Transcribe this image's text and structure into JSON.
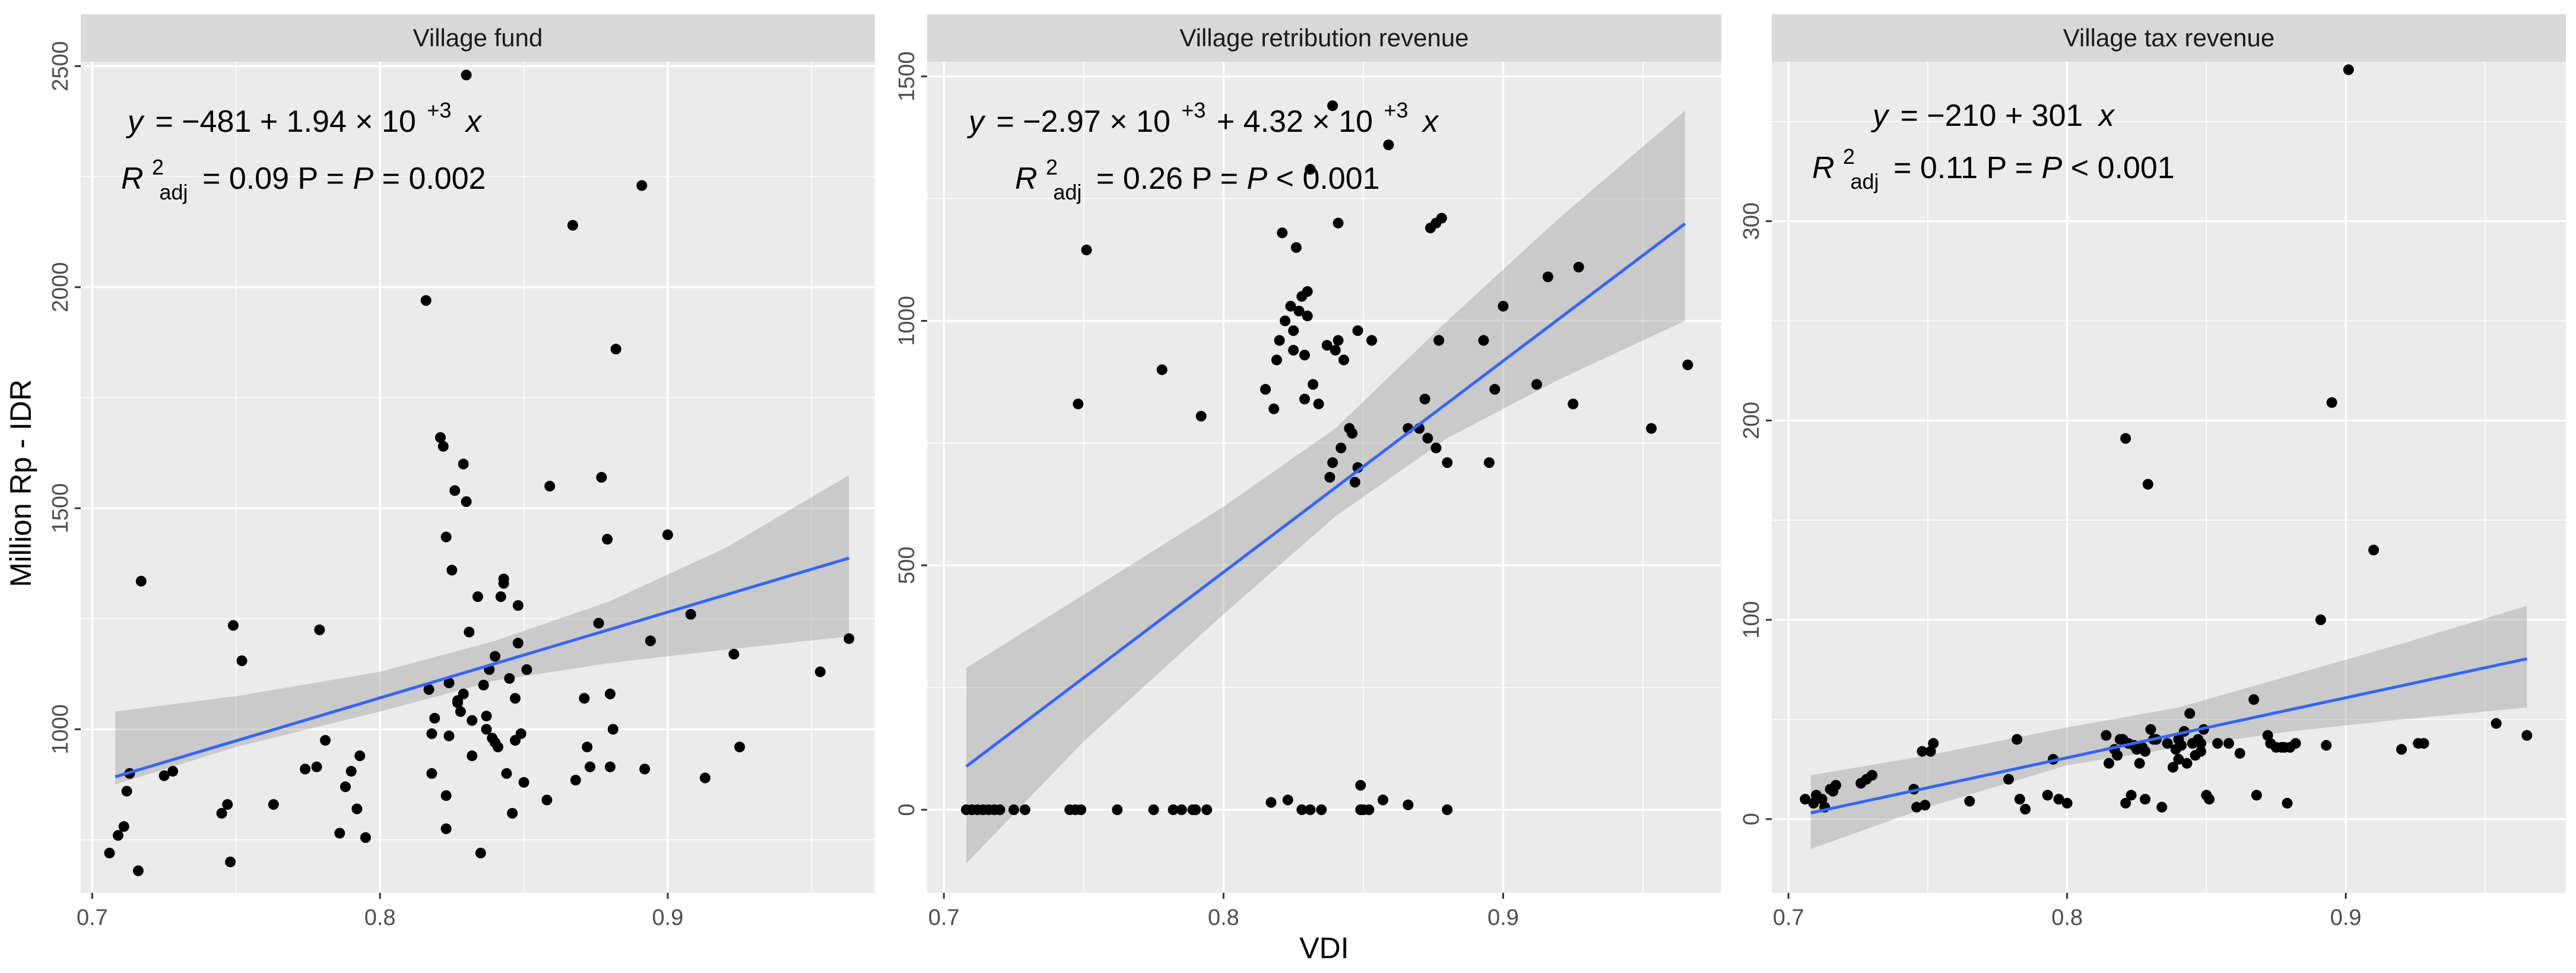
{
  "figure": {
    "x_axis_title": "VDI",
    "y_axis_title": "Million Rp - IDR"
  },
  "colors": {
    "panel_bg": "#ebebeb",
    "strip_bg": "#d9d9d9",
    "grid": "#ffffff",
    "point": "#000000",
    "fit_line": "#3366ff",
    "ci_band": "#999999"
  },
  "panels": [
    {
      "strip_title": "Village fund",
      "eq_y": "y",
      "eq_rhs": "= −481 + 1.94 × 10",
      "eq_exp": "+3",
      "eq_x": "x",
      "r2_label": "R",
      "r2_sup": "2",
      "r2_sub": "adj",
      "r2_rest": "= 0.09 P = ",
      "p_italic": "P",
      "p_rest": " = 0.002",
      "x_ticks": [
        "0.7",
        "0.8",
        "0.9"
      ],
      "y_ticks": [
        "1000",
        "1500",
        "2000",
        "2500"
      ]
    },
    {
      "strip_title": "Village retribution revenue",
      "eq_y": "y",
      "eq_rhs": "= −2.97 × 10",
      "eq_exp": "+3",
      "eq_mid": " + 4.32 × 10",
      "eq_exp2": "+3",
      "eq_x": "x",
      "r2_label": "R",
      "r2_sup": "2",
      "r2_sub": "adj",
      "r2_rest": "= 0.26 P = ",
      "p_italic": "P",
      "p_rest": " < 0.001",
      "x_ticks": [
        "0.7",
        "0.8",
        "0.9"
      ],
      "y_ticks": [
        "0",
        "500",
        "1000",
        "1500"
      ]
    },
    {
      "strip_title": "Village tax revenue",
      "eq_y": "y",
      "eq_rhs": "= −210 + 301",
      "eq_x": "x",
      "r2_label": "R",
      "r2_sup": "2",
      "r2_sub": "adj",
      "r2_rest": "= 0.11 P = ",
      "p_italic": "P",
      "p_rest": " < 0.001",
      "x_ticks": [
        "0.7",
        "0.8",
        "0.9"
      ],
      "y_ticks": [
        "0",
        "100",
        "200",
        "300"
      ]
    }
  ],
  "chart_data": [
    {
      "type": "scatter",
      "title": "Village fund",
      "xlabel": "VDI",
      "ylabel": "Million Rp - IDR",
      "xlim": [
        0.696,
        0.972
      ],
      "ylim": [
        630,
        2510
      ],
      "x_ticks": [
        0.7,
        0.8,
        0.9
      ],
      "y_ticks": [
        1000,
        1500,
        2000,
        2500
      ],
      "fit": {
        "intercept": -481,
        "slope": 1940,
        "x_range": [
          0.708,
          0.963
        ]
      },
      "ci": [
        [
          0.708,
          875,
          1040
        ],
        [
          0.75,
          960,
          1075
        ],
        [
          0.8,
          1040,
          1130
        ],
        [
          0.84,
          1110,
          1200
        ],
        [
          0.88,
          1150,
          1290
        ],
        [
          0.92,
          1180,
          1410
        ],
        [
          0.963,
          1210,
          1575
        ]
      ],
      "points": [
        [
          0.706,
          720
        ],
        [
          0.709,
          760
        ],
        [
          0.711,
          780
        ],
        [
          0.712,
          860
        ],
        [
          0.713,
          900
        ],
        [
          0.716,
          680
        ],
        [
          0.717,
          1335
        ],
        [
          0.725,
          895
        ],
        [
          0.728,
          905
        ],
        [
          0.745,
          810
        ],
        [
          0.747,
          830
        ],
        [
          0.748,
          700
        ],
        [
          0.749,
          1235
        ],
        [
          0.752,
          1155
        ],
        [
          0.763,
          830
        ],
        [
          0.774,
          910
        ],
        [
          0.778,
          915
        ],
        [
          0.779,
          1225
        ],
        [
          0.781,
          975
        ],
        [
          0.786,
          765
        ],
        [
          0.788,
          870
        ],
        [
          0.79,
          905
        ],
        [
          0.792,
          820
        ],
        [
          0.793,
          940
        ],
        [
          0.795,
          755
        ],
        [
          0.816,
          1970
        ],
        [
          0.817,
          1090
        ],
        [
          0.818,
          900
        ],
        [
          0.818,
          990
        ],
        [
          0.819,
          1025
        ],
        [
          0.821,
          1660
        ],
        [
          0.822,
          1640
        ],
        [
          0.823,
          850
        ],
        [
          0.823,
          1435
        ],
        [
          0.823,
          775
        ],
        [
          0.824,
          985
        ],
        [
          0.824,
          1105
        ],
        [
          0.825,
          1360
        ],
        [
          0.826,
          1540
        ],
        [
          0.827,
          1065
        ],
        [
          0.827,
          1060
        ],
        [
          0.828,
          1040
        ],
        [
          0.829,
          1080
        ],
        [
          0.829,
          1600
        ],
        [
          0.83,
          2480
        ],
        [
          0.83,
          1515
        ],
        [
          0.831,
          1220
        ],
        [
          0.832,
          940
        ],
        [
          0.832,
          1020
        ],
        [
          0.834,
          1300
        ],
        [
          0.835,
          720
        ],
        [
          0.836,
          1100
        ],
        [
          0.837,
          1030
        ],
        [
          0.837,
          1000
        ],
        [
          0.838,
          1135
        ],
        [
          0.839,
          980
        ],
        [
          0.84,
          1165
        ],
        [
          0.84,
          970
        ],
        [
          0.841,
          960
        ],
        [
          0.842,
          1300
        ],
        [
          0.843,
          1340
        ],
        [
          0.843,
          1330
        ],
        [
          0.844,
          900
        ],
        [
          0.845,
          1115
        ],
        [
          0.846,
          810
        ],
        [
          0.847,
          1070
        ],
        [
          0.847,
          975
        ],
        [
          0.848,
          1280
        ],
        [
          0.848,
          1195
        ],
        [
          0.849,
          990
        ],
        [
          0.85,
          880
        ],
        [
          0.851,
          1135
        ],
        [
          0.858,
          840
        ],
        [
          0.859,
          1550
        ],
        [
          0.867,
          2140
        ],
        [
          0.868,
          885
        ],
        [
          0.871,
          1070
        ],
        [
          0.872,
          960
        ],
        [
          0.873,
          915
        ],
        [
          0.876,
          1240
        ],
        [
          0.877,
          1570
        ],
        [
          0.879,
          1430
        ],
        [
          0.88,
          915
        ],
        [
          0.88,
          1080
        ],
        [
          0.881,
          1000
        ],
        [
          0.882,
          1860
        ],
        [
          0.891,
          2230
        ],
        [
          0.892,
          910
        ],
        [
          0.894,
          1200
        ],
        [
          0.9,
          1440
        ],
        [
          0.908,
          1260
        ],
        [
          0.913,
          890
        ],
        [
          0.923,
          1170
        ],
        [
          0.925,
          960
        ],
        [
          0.953,
          1130
        ],
        [
          0.963,
          1205
        ]
      ]
    },
    {
      "type": "scatter",
      "title": "Village retribution revenue",
      "xlabel": "VDI",
      "ylabel": "Million Rp - IDR",
      "xlim": [
        0.694,
        0.978
      ],
      "ylim": [
        -170,
        1530
      ],
      "x_ticks": [
        0.7,
        0.8,
        0.9
      ],
      "y_ticks": [
        0,
        500,
        1000,
        1500
      ],
      "fit": {
        "intercept": -2970,
        "slope": 4320,
        "x_range": [
          0.708,
          0.965
        ]
      },
      "ci": [
        [
          0.708,
          -110,
          290
        ],
        [
          0.75,
          140,
          440
        ],
        [
          0.8,
          400,
          620
        ],
        [
          0.84,
          600,
          780
        ],
        [
          0.88,
          760,
          1000
        ],
        [
          0.92,
          880,
          1210
        ],
        [
          0.965,
          1000,
          1430
        ]
      ],
      "points": [
        [
          0.708,
          0
        ],
        [
          0.71,
          0
        ],
        [
          0.712,
          0
        ],
        [
          0.714,
          0
        ],
        [
          0.716,
          0
        ],
        [
          0.718,
          0
        ],
        [
          0.72,
          0
        ],
        [
          0.725,
          0
        ],
        [
          0.729,
          0
        ],
        [
          0.745,
          0
        ],
        [
          0.747,
          0
        ],
        [
          0.748,
          830
        ],
        [
          0.749,
          0
        ],
        [
          0.751,
          1145
        ],
        [
          0.762,
          0
        ],
        [
          0.775,
          0
        ],
        [
          0.778,
          900
        ],
        [
          0.782,
          0
        ],
        [
          0.785,
          0
        ],
        [
          0.789,
          0
        ],
        [
          0.79,
          0
        ],
        [
          0.792,
          805
        ],
        [
          0.794,
          0
        ],
        [
          0.815,
          860
        ],
        [
          0.817,
          15
        ],
        [
          0.818,
          820
        ],
        [
          0.819,
          920
        ],
        [
          0.82,
          960
        ],
        [
          0.821,
          1180
        ],
        [
          0.822,
          1000
        ],
        [
          0.823,
          20
        ],
        [
          0.824,
          1030
        ],
        [
          0.825,
          940
        ],
        [
          0.825,
          980
        ],
        [
          0.826,
          1150
        ],
        [
          0.827,
          1020
        ],
        [
          0.828,
          0
        ],
        [
          0.828,
          1050
        ],
        [
          0.829,
          840
        ],
        [
          0.829,
          930
        ],
        [
          0.83,
          1060
        ],
        [
          0.83,
          1010
        ],
        [
          0.831,
          0
        ],
        [
          0.831,
          1310
        ],
        [
          0.832,
          870
        ],
        [
          0.834,
          830
        ],
        [
          0.835,
          0
        ],
        [
          0.837,
          950
        ],
        [
          0.838,
          680
        ],
        [
          0.839,
          710
        ],
        [
          0.839,
          1440
        ],
        [
          0.84,
          940
        ],
        [
          0.841,
          1200
        ],
        [
          0.841,
          960
        ],
        [
          0.842,
          740
        ],
        [
          0.843,
          920
        ],
        [
          0.845,
          780
        ],
        [
          0.846,
          770
        ],
        [
          0.847,
          670
        ],
        [
          0.848,
          700
        ],
        [
          0.848,
          980
        ],
        [
          0.849,
          50
        ],
        [
          0.849,
          0
        ],
        [
          0.85,
          0
        ],
        [
          0.852,
          0
        ],
        [
          0.853,
          960
        ],
        [
          0.857,
          20
        ],
        [
          0.859,
          1360
        ],
        [
          0.866,
          780
        ],
        [
          0.866,
          10
        ],
        [
          0.87,
          780
        ],
        [
          0.872,
          840
        ],
        [
          0.873,
          760
        ],
        [
          0.874,
          1190
        ],
        [
          0.876,
          1200
        ],
        [
          0.876,
          740
        ],
        [
          0.877,
          960
        ],
        [
          0.878,
          1210
        ],
        [
          0.88,
          0
        ],
        [
          0.88,
          710
        ],
        [
          0.893,
          960
        ],
        [
          0.895,
          710
        ],
        [
          0.897,
          860
        ],
        [
          0.9,
          1030
        ],
        [
          0.912,
          870
        ],
        [
          0.916,
          1090
        ],
        [
          0.925,
          830
        ],
        [
          0.927,
          1110
        ],
        [
          0.953,
          780
        ],
        [
          0.966,
          910
        ]
      ]
    },
    {
      "type": "scatter",
      "title": "Village tax revenue",
      "xlabel": "VDI",
      "ylabel": "Million Rp - IDR",
      "xlim": [
        0.694,
        0.979
      ],
      "ylim": [
        -37,
        380
      ],
      "x_ticks": [
        0.7,
        0.8,
        0.9
      ],
      "y_ticks": [
        0,
        100,
        200,
        300
      ],
      "fit": {
        "intercept": -210,
        "slope": 301,
        "x_range": [
          0.708,
          0.965
        ]
      },
      "ci": [
        [
          0.708,
          -15,
          22
        ],
        [
          0.75,
          6,
          32
        ],
        [
          0.8,
          27,
          46
        ],
        [
          0.84,
          36,
          56
        ],
        [
          0.88,
          44,
          72
        ],
        [
          0.92,
          50,
          88
        ],
        [
          0.965,
          56,
          107
        ]
      ],
      "points": [
        [
          0.706,
          10
        ],
        [
          0.709,
          8
        ],
        [
          0.71,
          12
        ],
        [
          0.712,
          10
        ],
        [
          0.713,
          6
        ],
        [
          0.715,
          15
        ],
        [
          0.716,
          14
        ],
        [
          0.717,
          17
        ],
        [
          0.726,
          18
        ],
        [
          0.728,
          20
        ],
        [
          0.73,
          22
        ],
        [
          0.745,
          15
        ],
        [
          0.746,
          6
        ],
        [
          0.748,
          34
        ],
        [
          0.749,
          7
        ],
        [
          0.751,
          34
        ],
        [
          0.752,
          38
        ],
        [
          0.765,
          9
        ],
        [
          0.779,
          20
        ],
        [
          0.782,
          40
        ],
        [
          0.783,
          10
        ],
        [
          0.785,
          5
        ],
        [
          0.793,
          12
        ],
        [
          0.795,
          30
        ],
        [
          0.797,
          10
        ],
        [
          0.8,
          8
        ],
        [
          0.814,
          42
        ],
        [
          0.815,
          28
        ],
        [
          0.817,
          35
        ],
        [
          0.818,
          32
        ],
        [
          0.819,
          40
        ],
        [
          0.82,
          40
        ],
        [
          0.821,
          8
        ],
        [
          0.821,
          191
        ],
        [
          0.822,
          38
        ],
        [
          0.823,
          12
        ],
        [
          0.824,
          37
        ],
        [
          0.825,
          35
        ],
        [
          0.826,
          28
        ],
        [
          0.827,
          36
        ],
        [
          0.828,
          10
        ],
        [
          0.828,
          34
        ],
        [
          0.829,
          168
        ],
        [
          0.83,
          45
        ],
        [
          0.831,
          40
        ],
        [
          0.832,
          40
        ],
        [
          0.834,
          6
        ],
        [
          0.836,
          38
        ],
        [
          0.838,
          26
        ],
        [
          0.839,
          35
        ],
        [
          0.84,
          30
        ],
        [
          0.84,
          40
        ],
        [
          0.841,
          37
        ],
        [
          0.842,
          44
        ],
        [
          0.843,
          28
        ],
        [
          0.844,
          53
        ],
        [
          0.845,
          38
        ],
        [
          0.846,
          32
        ],
        [
          0.847,
          40
        ],
        [
          0.848,
          34
        ],
        [
          0.848,
          38
        ],
        [
          0.849,
          45
        ],
        [
          0.85,
          12
        ],
        [
          0.851,
          10
        ],
        [
          0.854,
          38
        ],
        [
          0.858,
          38
        ],
        [
          0.862,
          33
        ],
        [
          0.867,
          60
        ],
        [
          0.868,
          12
        ],
        [
          0.872,
          42
        ],
        [
          0.873,
          38
        ],
        [
          0.875,
          36
        ],
        [
          0.877,
          36
        ],
        [
          0.878,
          36
        ],
        [
          0.879,
          8
        ],
        [
          0.88,
          36
        ],
        [
          0.882,
          38
        ],
        [
          0.891,
          100
        ],
        [
          0.893,
          37
        ],
        [
          0.895,
          209
        ],
        [
          0.901,
          376
        ],
        [
          0.91,
          135
        ],
        [
          0.92,
          35
        ],
        [
          0.926,
          38
        ],
        [
          0.928,
          38
        ],
        [
          0.954,
          48
        ],
        [
          0.965,
          42
        ]
      ]
    }
  ]
}
